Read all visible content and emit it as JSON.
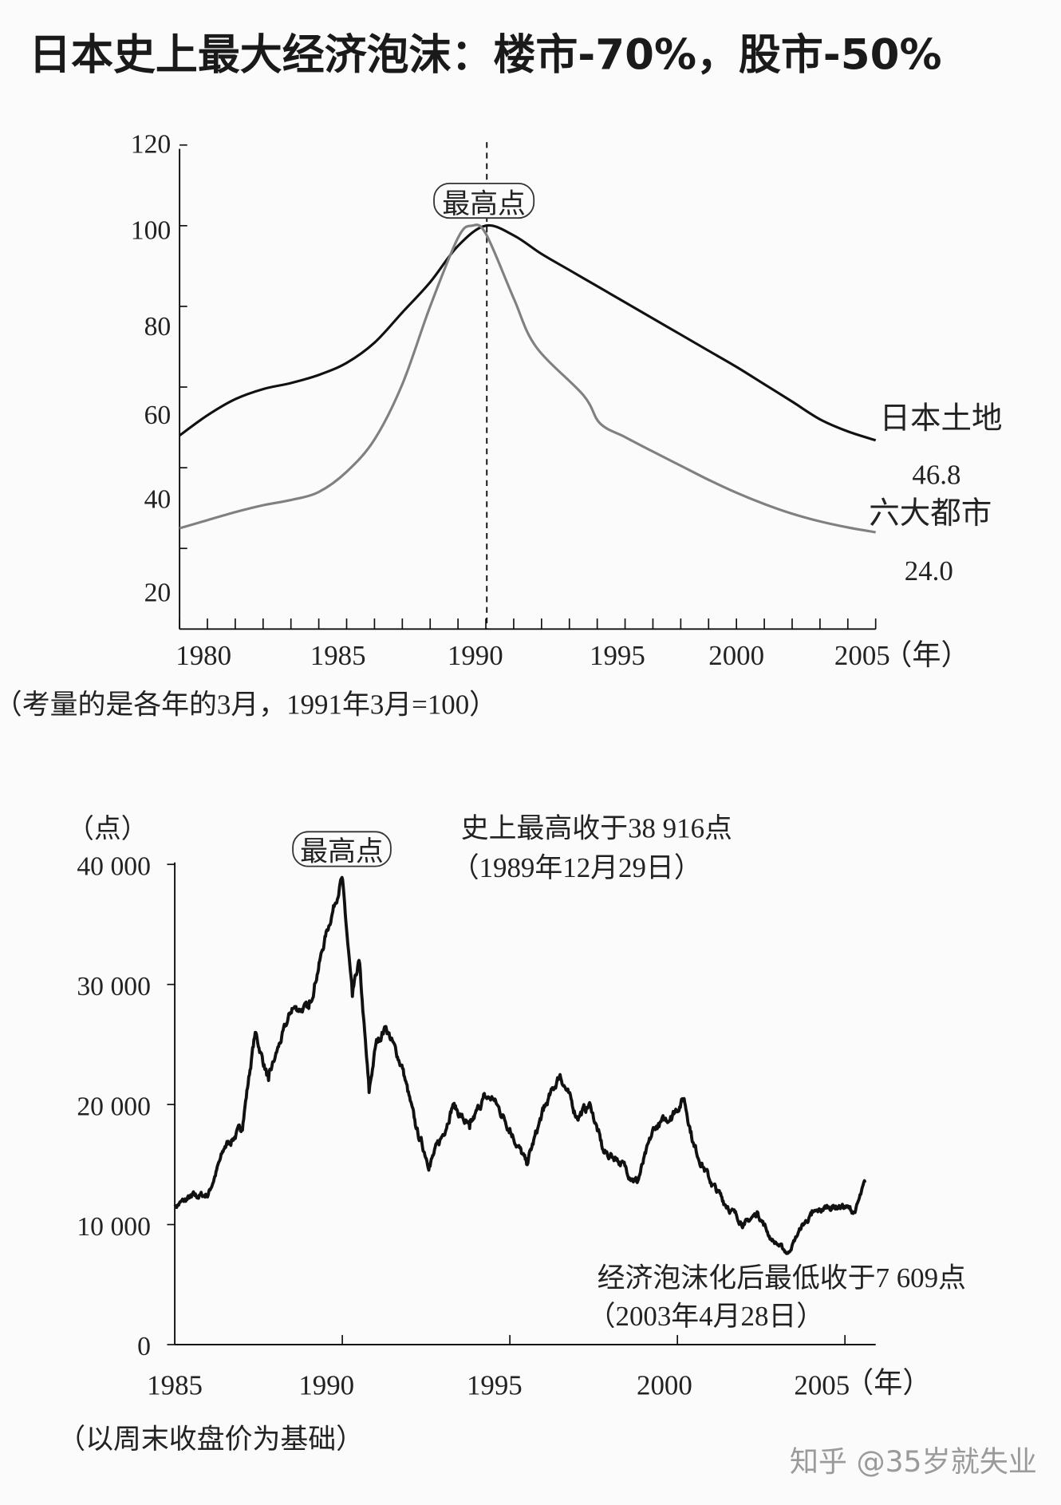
{
  "title": "日本史上最大经济泡沫：楼市-70%，股市-50%",
  "watermark": "知乎 @35岁就失业",
  "chart_data": [
    {
      "type": "line",
      "x_unit_label": "（年）",
      "note": "（考量的是各年的3月，1991年3月=100）",
      "peak_label": "最高点",
      "peak_x": 1991,
      "xlim": [
        1980,
        2005
      ],
      "ylim": [
        0,
        120
      ],
      "x_ticks": [
        1980,
        1985,
        1990,
        1995,
        2000,
        2005
      ],
      "y_ticks": [
        20,
        40,
        60,
        80,
        100,
        120
      ],
      "colors": {
        "land": "#111111",
        "six_cities": "#808080"
      },
      "series": [
        {
          "name": "日本土地",
          "end_label": "46.8",
          "x": [
            1980,
            1981,
            1982,
            1983,
            1984,
            1985,
            1986,
            1987,
            1988,
            1989,
            1990,
            1991,
            1992,
            1993,
            1994,
            1995,
            1996,
            1997,
            1998,
            1999,
            2000,
            2001,
            2002,
            2003,
            2004,
            2005
          ],
          "values": [
            48,
            53,
            57,
            59.5,
            61,
            63,
            66,
            71,
            78.5,
            86,
            95,
            100,
            97.6,
            93,
            89,
            85,
            81,
            77,
            73,
            69,
            65,
            60.7,
            56.4,
            52,
            49,
            46.8
          ]
        },
        {
          "name": "六大都市",
          "end_label": "24.0",
          "x": [
            1980,
            1981,
            1982,
            1983,
            1984,
            1985,
            1986,
            1987,
            1988,
            1989,
            1990,
            1990.5,
            1991,
            1992,
            1992.8,
            1994.5,
            1995.1,
            1996,
            1997,
            1998,
            1999,
            2000,
            2001,
            2002,
            2003,
            2004,
            2005
          ],
          "values": [
            25,
            27,
            29,
            30.7,
            32,
            34,
            39,
            47,
            60.7,
            80,
            97,
            100,
            98,
            82,
            70,
            58,
            51,
            47.6,
            44,
            40.5,
            37,
            33.8,
            31,
            28.6,
            26.7,
            25.2,
            24.0
          ]
        }
      ]
    },
    {
      "type": "line",
      "y_unit_label": "（点）",
      "x_unit_label": "（年）",
      "note": "（以周末收盘价为基础）",
      "peak_label": "最高点",
      "high_annotation": [
        "史上最高收于38 916点",
        "（1989年12月29日）"
      ],
      "low_annotation": [
        "经济泡沫化后最低收于7 609点",
        "（2003年4月28日）"
      ],
      "xlim": [
        1985,
        2006
      ],
      "ylim": [
        0,
        40000
      ],
      "x_ticks": [
        1985,
        1990,
        1995,
        2000,
        2005
      ],
      "y_ticks": [
        0,
        10000,
        20000,
        30000,
        40000
      ],
      "y_tick_labels": [
        "0",
        "10 000",
        "20 000",
        "30 000",
        "40 000"
      ],
      "series": [
        {
          "x": [
            1985.0,
            1985.5,
            1986.0,
            1986.5,
            1987.0,
            1987.4,
            1987.8,
            1988.0,
            1988.5,
            1989.0,
            1989.5,
            1989.99,
            1990.3,
            1990.5,
            1990.8,
            1991.0,
            1991.3,
            1991.8,
            1992.2,
            1992.6,
            1993.0,
            1993.3,
            1993.8,
            1994.2,
            1994.5,
            1995.0,
            1995.5,
            1996.0,
            1996.5,
            1997.0,
            1997.4,
            1997.8,
            1998.2,
            1998.8,
            1999.3,
            1999.8,
            2000.2,
            2000.5,
            2001.0,
            2001.5,
            2002.0,
            2002.4,
            2002.8,
            2003.3,
            2003.7,
            2004.0,
            2004.5,
            2005.0,
            2005.3,
            2005.6
          ],
          "values": [
            11500,
            12300,
            12500,
            16500,
            18000,
            26000,
            22000,
            24000,
            28000,
            28000,
            34000,
            38916,
            29000,
            32000,
            21000,
            25000,
            26500,
            23000,
            18000,
            15000,
            17500,
            20000,
            18000,
            20500,
            20500,
            18000,
            15000,
            19500,
            22500,
            19000,
            20000,
            16000,
            15500,
            13500,
            18000,
            19000,
            20500,
            16500,
            13500,
            11500,
            10000,
            11000,
            8800,
            7609,
            9800,
            10800,
            11500,
            11500,
            11000,
            13500
          ]
        }
      ]
    }
  ]
}
